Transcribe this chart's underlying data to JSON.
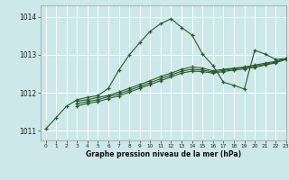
{
  "xlabel": "Graphe pression niveau de la mer (hPa)",
  "bg_color": "#cce8e8",
  "grid_color": "#ffffff",
  "line_color": "#2d5a2d",
  "xlim": [
    -0.5,
    23
  ],
  "ylim": [
    1010.75,
    1014.3
  ],
  "yticks": [
    1011,
    1012,
    1013,
    1014
  ],
  "xticks": [
    0,
    1,
    2,
    3,
    4,
    5,
    6,
    7,
    8,
    9,
    10,
    11,
    12,
    13,
    14,
    15,
    16,
    17,
    18,
    19,
    20,
    21,
    22,
    23
  ],
  "s1_x": [
    0,
    1,
    2,
    3,
    4,
    5,
    6,
    7,
    8,
    9,
    10,
    11,
    12,
    13,
    14,
    15,
    16,
    17,
    18,
    19,
    20,
    21,
    22,
    23
  ],
  "s1_y": [
    1011.05,
    1011.35,
    1011.65,
    1011.82,
    1011.88,
    1011.93,
    1012.12,
    1012.6,
    1013.0,
    1013.32,
    1013.62,
    1013.82,
    1013.95,
    1013.72,
    1013.52,
    1013.02,
    1012.72,
    1012.28,
    1012.2,
    1012.1,
    1013.12,
    1013.02,
    1012.88,
    1012.9
  ],
  "s2_x": [
    3,
    4,
    5,
    6,
    7,
    8,
    9,
    10,
    11,
    12,
    13,
    14,
    15,
    16,
    17,
    18,
    19,
    20,
    21,
    22,
    23
  ],
  "s2_y": [
    1011.78,
    1011.82,
    1011.88,
    1011.93,
    1012.02,
    1012.12,
    1012.22,
    1012.32,
    1012.43,
    1012.52,
    1012.62,
    1012.68,
    1012.65,
    1012.58,
    1012.62,
    1012.65,
    1012.68,
    1012.73,
    1012.78,
    1012.83,
    1012.9
  ],
  "s3_x": [
    3,
    4,
    5,
    6,
    7,
    8,
    9,
    10,
    11,
    12,
    13,
    14,
    15,
    16,
    17,
    18,
    19,
    20,
    21,
    22,
    23
  ],
  "s3_y": [
    1011.72,
    1011.77,
    1011.82,
    1011.9,
    1011.97,
    1012.07,
    1012.17,
    1012.27,
    1012.37,
    1012.47,
    1012.57,
    1012.62,
    1012.6,
    1012.55,
    1012.59,
    1012.63,
    1012.66,
    1012.7,
    1012.75,
    1012.81,
    1012.9
  ],
  "s4_x": [
    3,
    4,
    5,
    6,
    7,
    8,
    9,
    10,
    11,
    12,
    13,
    14,
    15,
    16,
    17,
    18,
    19,
    20,
    21,
    22,
    23
  ],
  "s4_y": [
    1011.66,
    1011.72,
    1011.77,
    1011.85,
    1011.92,
    1012.02,
    1012.12,
    1012.22,
    1012.32,
    1012.42,
    1012.52,
    1012.57,
    1012.56,
    1012.52,
    1012.56,
    1012.6,
    1012.63,
    1012.67,
    1012.73,
    1012.79,
    1012.88
  ],
  "figsize": [
    3.2,
    2.0
  ],
  "dpi": 100
}
